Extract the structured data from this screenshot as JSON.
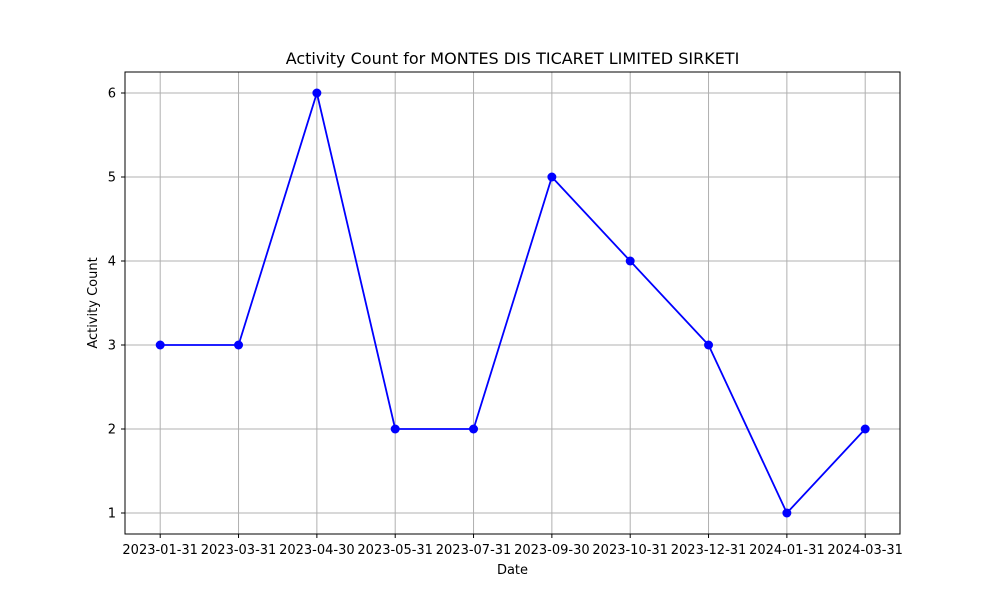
{
  "chart_data": {
    "type": "line",
    "title": "Activity Count for MONTES DIS TICARET LIMITED SIRKETI",
    "xlabel": "Date",
    "ylabel": "Activity Count",
    "categories": [
      "2023-01-31",
      "2023-03-31",
      "2023-04-30",
      "2023-05-31",
      "2023-07-31",
      "2023-09-30",
      "2023-10-31",
      "2023-12-31",
      "2024-01-31",
      "2024-03-31"
    ],
    "series": [
      {
        "values": [
          3,
          3,
          6,
          2,
          2,
          5,
          4,
          3,
          1,
          2
        ],
        "color": "#0000ff",
        "marker": "circle"
      }
    ],
    "yticks": [
      1,
      2,
      3,
      4,
      5,
      6
    ],
    "ylim": [
      0.75,
      6.25
    ],
    "grid": true,
    "grid_color": "#b0b0b0",
    "legend": "none"
  }
}
